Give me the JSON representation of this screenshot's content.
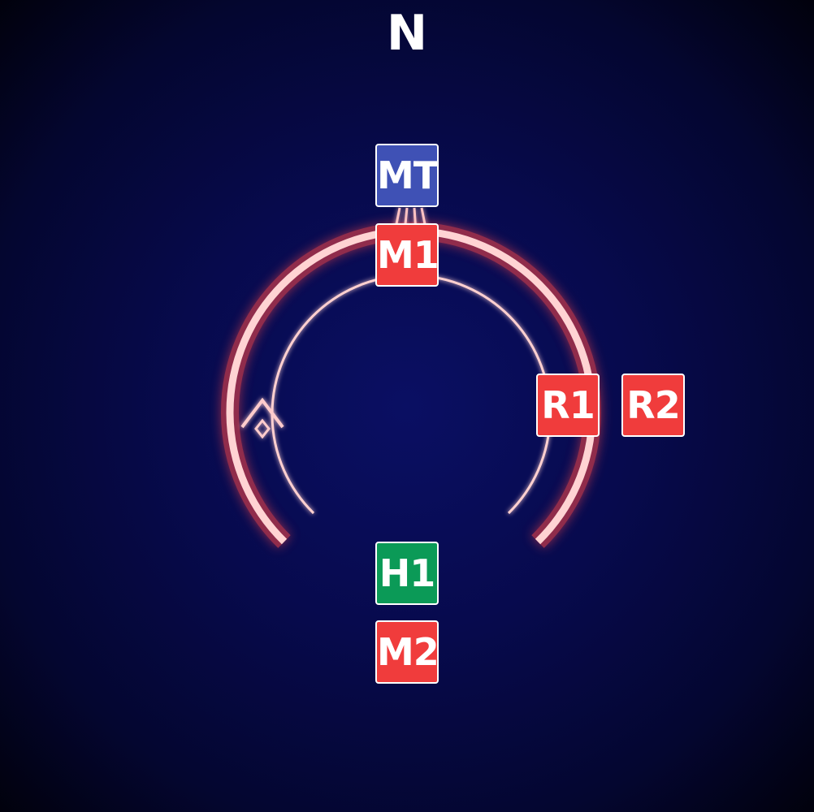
{
  "compass": {
    "north_label": "N"
  },
  "colors": {
    "tank": "#3f51b5",
    "healer": "#0b9a57",
    "dps": "#f03c3c",
    "arc_glow": "#ff5252",
    "arc_core": "#ffd6d6"
  },
  "markers": {
    "mt": {
      "label": "MT",
      "role": "tank"
    },
    "m1": {
      "label": "M1",
      "role": "dps"
    },
    "r1": {
      "label": "R1",
      "role": "dps"
    },
    "r2": {
      "label": "R2",
      "role": "dps"
    },
    "h1": {
      "label": "H1",
      "role": "healer"
    },
    "m2": {
      "label": "M2",
      "role": "dps"
    }
  },
  "icons": {
    "direction": "chevron-up-icon"
  }
}
